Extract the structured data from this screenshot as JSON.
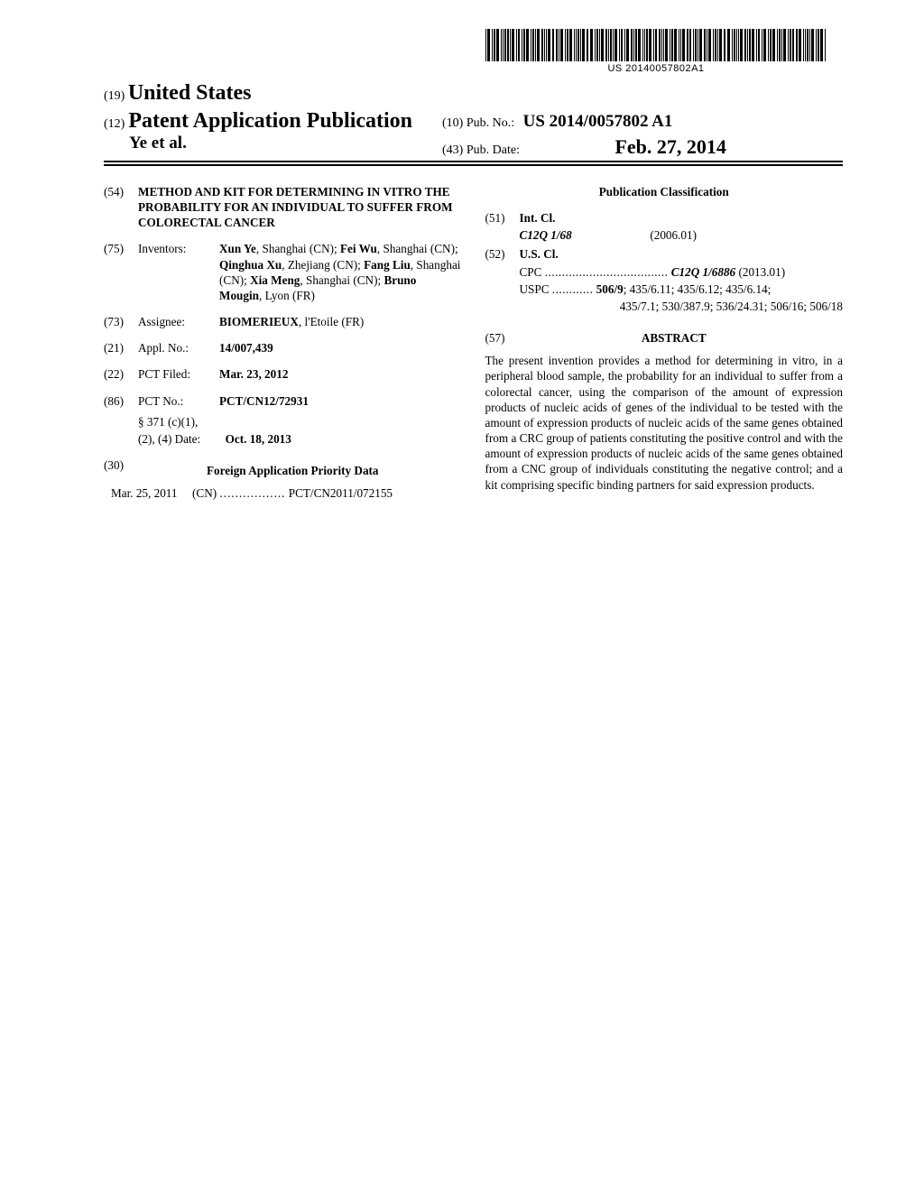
{
  "barcode_text": "US 20140057802A1",
  "header": {
    "country": "United States",
    "country_idx": "(19)",
    "kind": "Patent Application Publication",
    "kind_idx": "(12)",
    "authors_short": "Ye et al.",
    "pub_no_idx": "(10)",
    "pub_no_label": "Pub. No.:",
    "pub_no": "US 2014/0057802 A1",
    "pub_date_idx": "(43)",
    "pub_date_label": "Pub. Date:",
    "pub_date": "Feb. 27, 2014"
  },
  "left": {
    "title_idx": "(54)",
    "title": "METHOD AND KIT FOR DETERMINING IN VITRO THE PROBABILITY FOR AN INDIVIDUAL TO SUFFER FROM COLORECTAL CANCER",
    "inventors_idx": "(75)",
    "inventors_label": "Inventors:",
    "inventors_html": "<b>Xun Ye</b>, Shanghai (CN); <b>Fei Wu</b>, Shanghai (CN); <b>Qinghua Xu</b>, Zhejiang (CN); <b>Fang Liu</b>, Shanghai (CN); <b>Xia Meng</b>, Shanghai (CN); <b>Bruno Mougin</b>, Lyon (FR)",
    "assignee_idx": "(73)",
    "assignee_label": "Assignee:",
    "assignee_html": "<b>BIOMERIEUX</b>, l'Etoile (FR)",
    "appl_idx": "(21)",
    "appl_label": "Appl. No.:",
    "appl_no": "14/007,439",
    "pct_filed_idx": "(22)",
    "pct_filed_label": "PCT Filed:",
    "pct_filed": "Mar. 23, 2012",
    "pct_no_idx": "(86)",
    "pct_no_label": "PCT No.:",
    "pct_no": "PCT/CN12/72931",
    "s371_label": "§ 371 (c)(1),\n(2), (4) Date:",
    "s371_l1": "§ 371 (c)(1),",
    "s371_l2": "(2), (4) Date:",
    "s371_date": "Oct. 18, 2013",
    "foreign_idx": "(30)",
    "foreign_title": "Foreign Application Priority Data",
    "foreign_date": "Mar. 25, 2011",
    "foreign_country": "(CN)",
    "foreign_dots": ".................",
    "foreign_app": "PCT/CN2011/072155"
  },
  "right": {
    "pub_class_title": "Publication Classification",
    "intcl_idx": "(51)",
    "intcl_label": "Int. Cl.",
    "intcl_code": "C12Q 1/68",
    "intcl_year": "(2006.01)",
    "uscl_idx": "(52)",
    "uscl_label": "U.S. Cl.",
    "cpc_label": "CPC",
    "cpc_dots": "....................................",
    "cpc_code": "C12Q 1/6886",
    "cpc_year": "(2013.01)",
    "uspc_label": "USPC",
    "uspc_dots": "............",
    "uspc_codes_l1": "506/9; 435/6.11; 435/6.12; 435/6.14;",
    "uspc_codes_l2": "435/7.1; 530/387.9; 536/24.31; 506/16; 506/18",
    "abstract_idx": "(57)",
    "abstract_label": "ABSTRACT",
    "abstract": "The present invention provides a method for determining in vitro, in a peripheral blood sample, the probability for an individual to suffer from a colorectal cancer, using the comparison of the amount of expression products of nucleic acids of genes of the individual to be tested with the amount of expression products of nucleic acids of the same genes obtained from a CRC group of patients constituting the positive control and with the amount of expression products of nucleic acids of the same genes obtained from a CNC group of individuals constituting the negative control; and a kit comprising specific binding partners for said expression products."
  }
}
